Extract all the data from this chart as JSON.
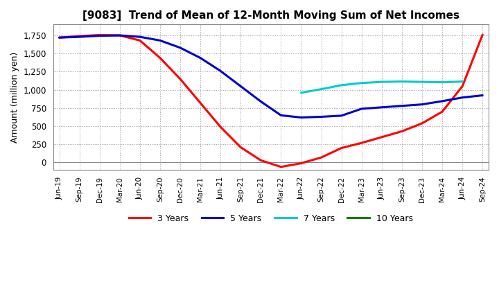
{
  "title": "[9083]  Trend of Mean of 12-Month Moving Sum of Net Incomes",
  "ylabel": "Amount (million yen)",
  "background_color": "#ffffff",
  "plot_bg_color": "#ffffff",
  "grid_color": "#999999",
  "ylim": [
    -100,
    1900
  ],
  "yticks": [
    0,
    250,
    500,
    750,
    1000,
    1250,
    1500,
    1750
  ],
  "x_labels": [
    "Jun-19",
    "Sep-19",
    "Dec-19",
    "Mar-20",
    "Jun-20",
    "Sep-20",
    "Dec-20",
    "Mar-21",
    "Jun-21",
    "Sep-21",
    "Dec-21",
    "Mar-22",
    "Jun-22",
    "Sep-22",
    "Dec-22",
    "Mar-23",
    "Jun-23",
    "Sep-23",
    "Dec-23",
    "Mar-24",
    "Jun-24",
    "Sep-24"
  ],
  "series": {
    "3 Years": {
      "color": "#ff0000",
      "data": [
        1720,
        1740,
        1755,
        1750,
        1680,
        1440,
        1150,
        820,
        490,
        210,
        30,
        -60,
        -10,
        70,
        200,
        270,
        350,
        430,
        540,
        700,
        1050,
        1760
      ]
    },
    "5 Years": {
      "color": "#0000cc",
      "data": [
        1720,
        1730,
        1745,
        1750,
        1730,
        1680,
        1580,
        1440,
        1260,
        1050,
        840,
        650,
        620,
        630,
        645,
        740,
        760,
        780,
        800,
        845,
        895,
        925
      ]
    },
    "7 Years": {
      "color": "#00cccc",
      "data": [
        null,
        null,
        null,
        null,
        null,
        null,
        null,
        null,
        null,
        null,
        null,
        null,
        960,
        1010,
        1065,
        1095,
        1110,
        1115,
        1110,
        1105,
        1115,
        null
      ]
    },
    "10 Years": {
      "color": "#008000",
      "data": [
        null,
        null,
        null,
        null,
        null,
        null,
        null,
        null,
        null,
        null,
        null,
        null,
        null,
        null,
        null,
        null,
        null,
        null,
        null,
        null,
        null,
        null
      ]
    }
  },
  "legend_order": [
    "3 Years",
    "5 Years",
    "7 Years",
    "10 Years"
  ],
  "linewidth": 2.2
}
